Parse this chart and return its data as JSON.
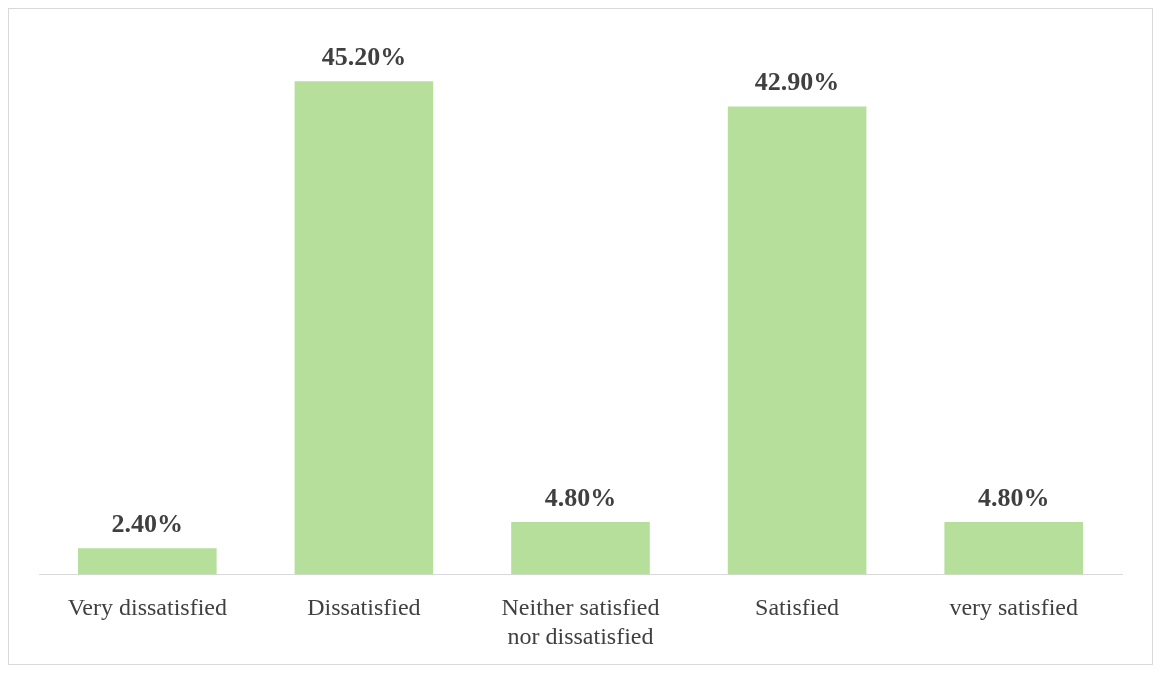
{
  "chart_data": {
    "type": "bar",
    "categories": [
      "Very dissatisfied",
      "Dissatisfied",
      "Neither satisfied nor dissatisfied",
      "Satisfied",
      "very satisfied"
    ],
    "values": [
      2.4,
      45.2,
      4.8,
      42.9,
      4.8
    ],
    "value_labels": [
      "2.40%",
      "45.20%",
      "4.80%",
      "42.90%",
      "4.80%"
    ],
    "color": "#b5df9b",
    "legend": false
  }
}
